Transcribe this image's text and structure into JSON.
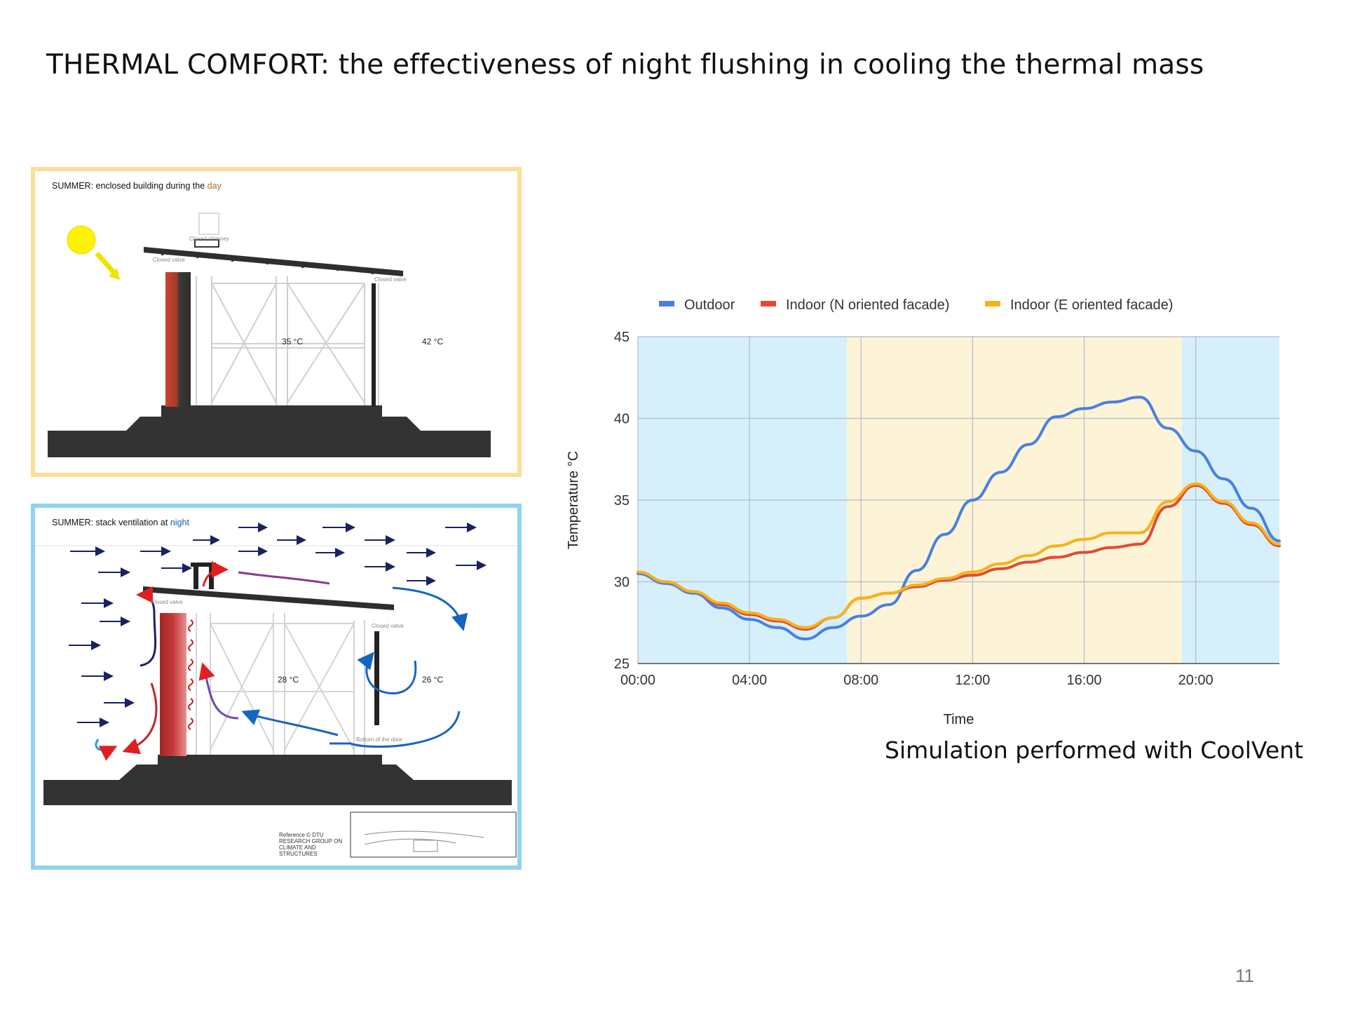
{
  "title": "THERMAL COMFORT: the effectiveness of night flushing in cooling the thermal mass",
  "page_number": "11",
  "footnote": "Simulation performed with CoolVent",
  "colors": {
    "day_border": "#fbdf98",
    "night_border": "#8fd3f1",
    "outdoor": "#4a7fe0",
    "indoor_n": "#e24a30",
    "indoor_e": "#f6b21a",
    "night_band": "#d5f0fb",
    "day_band": "#fdf4d8"
  },
  "diagram_day": {
    "caption_prefix": "SUMMER: enclosed building during the ",
    "caption_highlight": "day",
    "indoor_temp": "35 °C",
    "outdoor_temp": "42 °C",
    "chimney_label": "Closed chimney",
    "valve_left_label": "Closed valve",
    "valve_right_label": "Closed valve",
    "icons": [
      "sun-icon",
      "sun-ray-arrow-icon"
    ]
  },
  "diagram_night": {
    "caption_prefix": "SUMMER: stack ventilation at ",
    "caption_highlight": "night",
    "indoor_temp": "28 °C",
    "outdoor_temp": "26 °C",
    "valve_left_label": "Closed valve",
    "valve_right_label": "Closed valve",
    "door_label": "Bottom of the door",
    "reference": "Reference © DTU RESEARCH GROUP ON CLIMATE AND STRUCTURES"
  },
  "chart_data": {
    "type": "line",
    "xlabel": "Time",
    "ylabel": "Temperature °C",
    "ylim": [
      25,
      45
    ],
    "xlim": [
      0,
      23
    ],
    "y_ticks": [
      25,
      30,
      35,
      40,
      45
    ],
    "x_ticks": [
      "00:00",
      "04:00",
      "08:00",
      "12:00",
      "16:00",
      "20:00"
    ],
    "legend_position": "top",
    "grid": true,
    "bands": [
      {
        "from": 0,
        "to": 7.5,
        "kind": "night"
      },
      {
        "from": 7.5,
        "to": 19.5,
        "kind": "day"
      },
      {
        "from": 19.5,
        "to": 23,
        "kind": "night"
      }
    ],
    "x": [
      0,
      1,
      2,
      3,
      4,
      5,
      6,
      7,
      8,
      9,
      10,
      11,
      12,
      13,
      14,
      15,
      16,
      17,
      18,
      19,
      20,
      21,
      22,
      23
    ],
    "series": [
      {
        "name": "Outdoor",
        "color": "#4a7fe0",
        "values": [
          30.5,
          29.9,
          29.3,
          28.4,
          27.7,
          27.2,
          26.5,
          27.2,
          27.9,
          28.6,
          30.7,
          32.9,
          35.0,
          36.7,
          38.4,
          40.1,
          40.6,
          41.0,
          41.3,
          39.4,
          38.0,
          36.3,
          34.5,
          32.5
        ]
      },
      {
        "name": "Indoor (N oriented facade)",
        "color": "#e24a30",
        "values": [
          30.6,
          30.0,
          29.4,
          28.6,
          28.0,
          27.6,
          27.1,
          27.8,
          29.0,
          29.3,
          29.7,
          30.1,
          30.4,
          30.8,
          31.2,
          31.5,
          31.8,
          32.1,
          32.3,
          34.6,
          35.9,
          34.8,
          33.5,
          32.2
        ]
      },
      {
        "name": "Indoor (E oriented facade)",
        "color": "#f6b21a",
        "values": [
          30.6,
          30.0,
          29.4,
          28.7,
          28.1,
          27.7,
          27.2,
          27.8,
          29.0,
          29.3,
          29.8,
          30.2,
          30.6,
          31.1,
          31.6,
          32.2,
          32.6,
          33.0,
          33.0,
          34.9,
          36.0,
          34.9,
          33.6,
          32.3
        ]
      }
    ]
  }
}
